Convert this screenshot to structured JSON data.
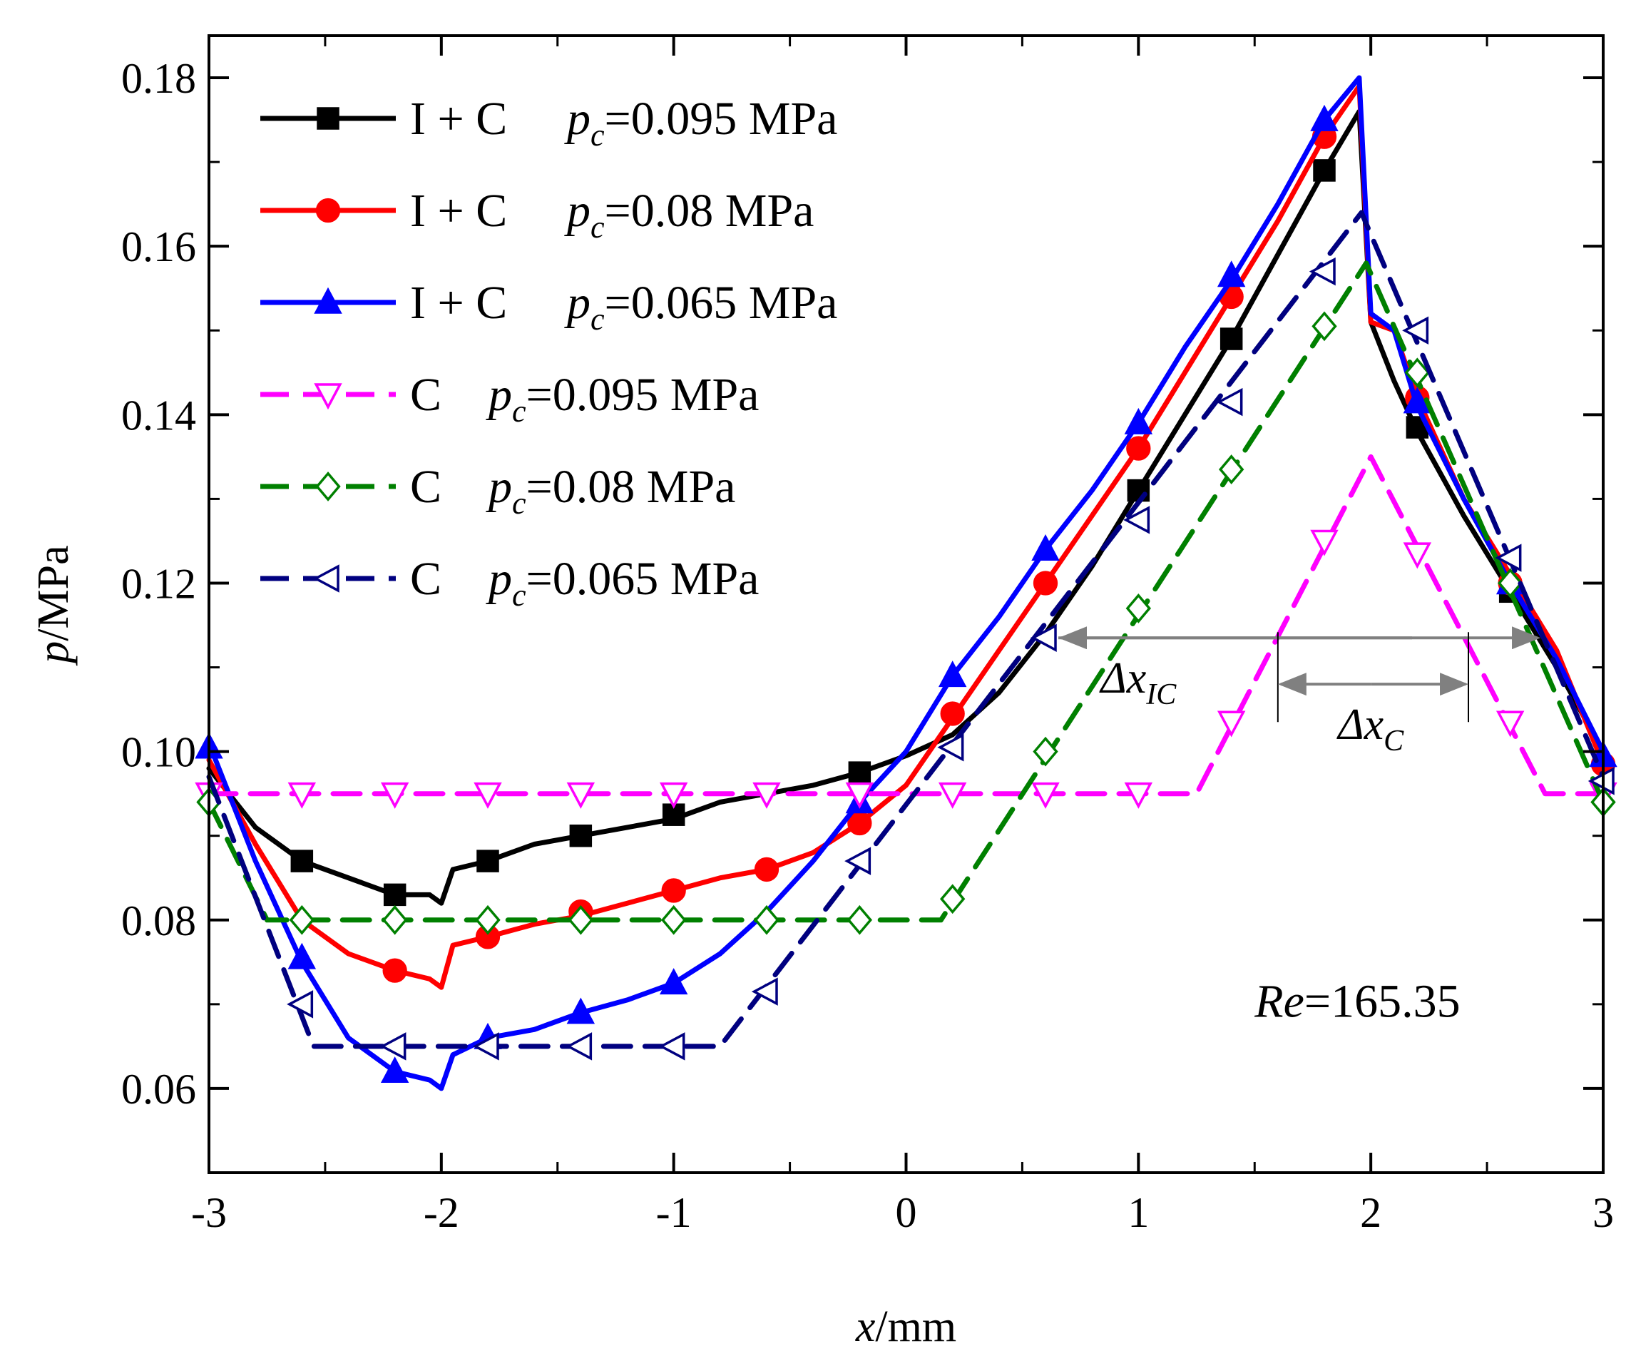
{
  "chart_data": {
    "type": "line",
    "xlabel_italic": "x",
    "xlabel_rest": "/mm",
    "ylabel_italic": "p",
    "ylabel_rest": "/MPa",
    "xlim": [
      -3,
      3
    ],
    "ylim": [
      0.05,
      0.185
    ],
    "x_ticks": [
      -3,
      -2,
      -1,
      0,
      1,
      2,
      3
    ],
    "x_tick_labels": [
      "-3",
      "-2",
      "-1",
      "0",
      "1",
      "2",
      "3"
    ],
    "y_ticks": [
      0.06,
      0.08,
      0.1,
      0.12,
      0.14,
      0.16,
      0.18
    ],
    "y_tick_labels": [
      "0.06",
      "0.08",
      "0.10",
      "0.12",
      "0.14",
      "0.16",
      "0.18"
    ],
    "legend_position": "top-left",
    "series": [
      {
        "name": "I + C p_c=0.095 MPa",
        "legend_prefix": "I + C",
        "legend_value": "=0.095 MPa",
        "color": "#000000",
        "dash": "solid",
        "marker": "square",
        "filled": true,
        "x": [
          -3,
          -2.8,
          -2.6,
          -2.4,
          -2.2,
          -2.05,
          -2.0,
          -1.95,
          -1.8,
          -1.6,
          -1.4,
          -1.2,
          -1.0,
          -0.8,
          -0.6,
          -0.4,
          -0.2,
          0,
          0.2,
          0.4,
          0.6,
          0.8,
          1.0,
          1.2,
          1.4,
          1.6,
          1.8,
          1.95,
          2.0,
          2.1,
          2.2,
          2.4,
          2.6,
          2.8,
          3.0
        ],
        "y": [
          0.098,
          0.091,
          0.087,
          0.085,
          0.083,
          0.083,
          0.082,
          0.086,
          0.087,
          0.089,
          0.09,
          0.091,
          0.092,
          0.094,
          0.095,
          0.096,
          0.0975,
          0.0995,
          0.102,
          0.107,
          0.114,
          0.122,
          0.131,
          0.14,
          0.149,
          0.159,
          0.169,
          0.176,
          0.151,
          0.144,
          0.138,
          0.128,
          0.119,
          0.11,
          0.1
        ],
        "marker_x": [
          -2.6,
          -2.2,
          -1.8,
          -1.4,
          -1.0,
          -0.2,
          1.0,
          1.4,
          1.8,
          2.2,
          2.6
        ],
        "marker_y": [
          0.087,
          0.083,
          0.087,
          0.09,
          0.0925,
          0.0975,
          0.131,
          0.149,
          0.169,
          0.1385,
          0.119
        ]
      },
      {
        "name": "I + C p_c=0.08 MPa",
        "legend_prefix": "I + C",
        "legend_value": "=0.08 MPa",
        "color": "#ff0000",
        "dash": "solid",
        "marker": "circle",
        "filled": true,
        "x": [
          -3,
          -2.8,
          -2.6,
          -2.4,
          -2.2,
          -2.05,
          -2.0,
          -1.95,
          -1.8,
          -1.6,
          -1.4,
          -1.2,
          -1.0,
          -0.8,
          -0.6,
          -0.4,
          -0.2,
          0,
          0.2,
          0.4,
          0.6,
          0.8,
          1.0,
          1.2,
          1.4,
          1.6,
          1.8,
          1.95,
          2.0,
          2.1,
          2.2,
          2.4,
          2.6,
          2.8,
          3.0
        ],
        "y": [
          0.099,
          0.089,
          0.08,
          0.076,
          0.074,
          0.073,
          0.072,
          0.077,
          0.078,
          0.0795,
          0.0805,
          0.082,
          0.0835,
          0.085,
          0.086,
          0.088,
          0.0915,
          0.096,
          0.104,
          0.112,
          0.12,
          0.128,
          0.136,
          0.145,
          0.154,
          0.163,
          0.173,
          0.179,
          0.151,
          0.15,
          0.142,
          0.13,
          0.121,
          0.112,
          0.0985
        ],
        "marker_x": [
          -2.2,
          -1.8,
          -1.4,
          -1.0,
          -0.6,
          -0.2,
          0.2,
          0.6,
          1.0,
          1.4,
          1.8,
          2.2,
          2.6,
          3.0
        ],
        "marker_y": [
          0.074,
          0.078,
          0.081,
          0.0835,
          0.086,
          0.0915,
          0.1045,
          0.12,
          0.136,
          0.154,
          0.173,
          0.142,
          0.12,
          0.0985
        ]
      },
      {
        "name": "I + C p_c=0.065 MPa",
        "legend_prefix": "I + C",
        "legend_value": "=0.065 MPa",
        "color": "#0000ff",
        "dash": "solid",
        "marker": "triangle-up",
        "filled": true,
        "x": [
          -3,
          -2.8,
          -2.6,
          -2.4,
          -2.2,
          -2.05,
          -2.0,
          -1.95,
          -1.8,
          -1.6,
          -1.4,
          -1.2,
          -1.0,
          -0.8,
          -0.6,
          -0.4,
          -0.2,
          0,
          0.2,
          0.4,
          0.6,
          0.8,
          1.0,
          1.2,
          1.4,
          1.6,
          1.8,
          1.95,
          2.0,
          2.1,
          2.2,
          2.4,
          2.6,
          2.8,
          3.0
        ],
        "y": [
          0.101,
          0.087,
          0.075,
          0.066,
          0.062,
          0.061,
          0.06,
          0.064,
          0.066,
          0.067,
          0.069,
          0.0705,
          0.0725,
          0.076,
          0.081,
          0.087,
          0.094,
          0.1,
          0.109,
          0.116,
          0.124,
          0.131,
          0.139,
          0.148,
          0.156,
          0.165,
          0.175,
          0.18,
          0.152,
          0.15,
          0.141,
          0.13,
          0.12,
          0.111,
          0.1
        ],
        "marker_x": [
          -3.0,
          -2.6,
          -2.2,
          -1.8,
          -1.4,
          -1.0,
          -0.2,
          0.2,
          0.6,
          1.0,
          1.4,
          1.8,
          2.2,
          2.6,
          3.0
        ],
        "marker_y": [
          0.1005,
          0.0755,
          0.062,
          0.066,
          0.069,
          0.0725,
          0.094,
          0.109,
          0.124,
          0.139,
          0.1565,
          0.175,
          0.1415,
          0.12,
          0.0995
        ]
      },
      {
        "name": "C p_c=0.095 MPa",
        "legend_prefix": "C",
        "legend_value": "=0.095 MPa",
        "color": "#ff00ff",
        "dash": "dash",
        "marker": "triangle-down",
        "filled": false,
        "x": [
          -3,
          1.25,
          2.0,
          2.75,
          3.0
        ],
        "y": [
          0.095,
          0.095,
          0.135,
          0.095,
          0.095
        ],
        "marker_x": [
          -3.0,
          -2.6,
          -2.2,
          -1.8,
          -1.4,
          -1.0,
          -0.6,
          -0.2,
          0.2,
          0.6,
          1.0,
          1.4,
          1.8,
          2.2,
          2.6,
          3.0
        ],
        "marker_y": [
          0.095,
          0.095,
          0.095,
          0.095,
          0.095,
          0.095,
          0.095,
          0.095,
          0.095,
          0.095,
          0.095,
          0.1035,
          0.125,
          0.1235,
          0.1035,
          0.095
        ]
      },
      {
        "name": "C p_c=0.08 MPa",
        "legend_prefix": "C",
        "legend_value": "=0.08 MPa",
        "color": "#008000",
        "dash": "dash",
        "marker": "diamond",
        "filled": false,
        "x": [
          -3,
          -2.75,
          0.15,
          1.98,
          3.0
        ],
        "y": [
          0.094,
          0.08,
          0.08,
          0.158,
          0.094
        ],
        "marker_x": [
          -3.0,
          -2.6,
          -2.2,
          -1.8,
          -1.4,
          -1.0,
          -0.6,
          -0.2,
          0.2,
          0.6,
          1.0,
          1.4,
          1.8,
          2.2,
          2.6,
          3.0
        ],
        "marker_y": [
          0.094,
          0.08,
          0.08,
          0.08,
          0.08,
          0.08,
          0.08,
          0.08,
          0.0825,
          0.1,
          0.117,
          0.1335,
          0.1505,
          0.145,
          0.12,
          0.094
        ]
      },
      {
        "name": "C p_c=0.065 MPa",
        "legend_prefix": "C",
        "legend_value": "=0.065 MPa",
        "color": "#000080",
        "dash": "dash",
        "marker": "triangle-left",
        "filled": false,
        "x": [
          -3,
          -2.55,
          -0.8,
          1.96,
          3.0
        ],
        "y": [
          0.097,
          0.065,
          0.065,
          0.164,
          0.097
        ],
        "marker_x": [
          -2.6,
          -2.2,
          -1.8,
          -1.4,
          -1.0,
          -0.6,
          -0.2,
          0.2,
          0.6,
          1.0,
          1.4,
          1.8,
          2.2,
          2.6,
          3.0
        ],
        "marker_y": [
          0.07,
          0.065,
          0.065,
          0.065,
          0.065,
          0.0715,
          0.087,
          0.1005,
          0.1135,
          0.1275,
          0.1415,
          0.157,
          0.15,
          0.123,
          0.0965
        ]
      }
    ],
    "annotations": {
      "dx_ic_base": "Δx",
      "dx_ic_sub": "IC",
      "dx_ic_from": 0.6,
      "dx_ic_to": 2.73,
      "dx_ic_y": 0.1135,
      "dx_c_base": "Δx",
      "dx_c_sub": "C",
      "dx_c_from": 1.6,
      "dx_c_to": 2.42,
      "dx_c_y": 0.108,
      "re_label": "Re",
      "re_value": "=165.35",
      "arrow_color": "#808080"
    }
  }
}
